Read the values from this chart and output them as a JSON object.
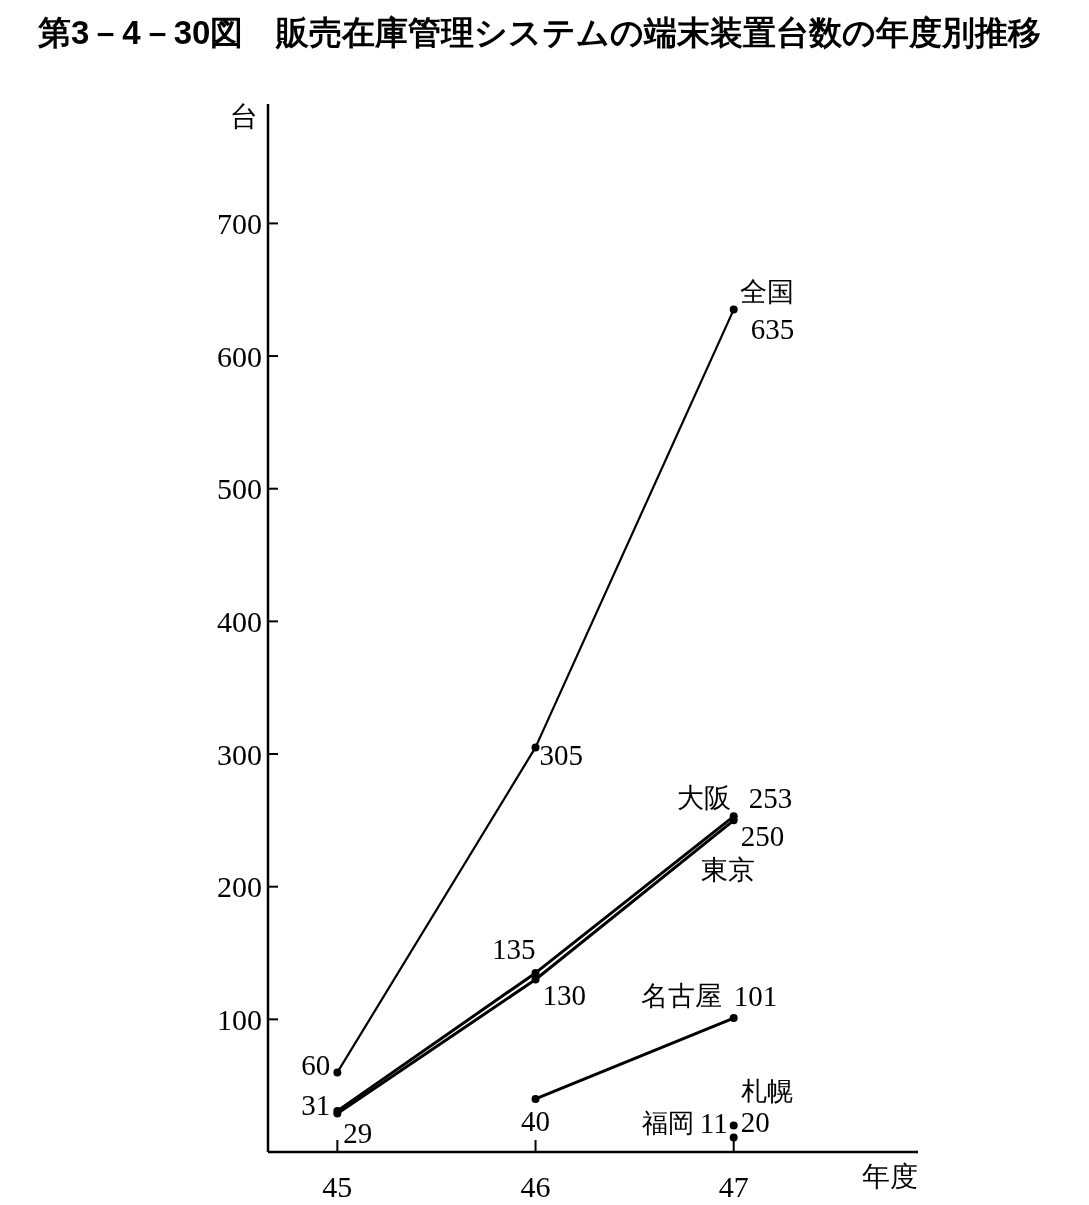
{
  "chart_data": {
    "type": "line",
    "title": "第3－4－30図　販売在庫管理システムの端末装置台数の年度別推移",
    "xlabel": "年度",
    "ylabel": "台",
    "x": [
      45,
      46,
      47
    ],
    "xlim": [
      44.65,
      47.93
    ],
    "xticks": [
      45,
      46,
      47
    ],
    "ylim": [
      0,
      790
    ],
    "yticks": [
      100,
      200,
      300,
      400,
      500,
      600,
      700
    ],
    "data_labels": true,
    "marker": "circle",
    "line_style": "solid",
    "series": [
      {
        "name": "全国",
        "color": "#000000",
        "values": [
          60,
          305,
          635
        ]
      },
      {
        "name": "大阪",
        "color": "#000000",
        "values": [
          31,
          135,
          253
        ]
      },
      {
        "name": "東京",
        "color": "#000000",
        "values": [
          29,
          130,
          250
        ]
      },
      {
        "name": "名古屋",
        "color": "#000000",
        "values": [
          null,
          40,
          101
        ]
      },
      {
        "name": "福岡",
        "color": "#000000",
        "values": [
          null,
          null,
          11
        ]
      },
      {
        "name": "札幌",
        "color": "#000000",
        "values": [
          null,
          null,
          20
        ]
      }
    ]
  }
}
